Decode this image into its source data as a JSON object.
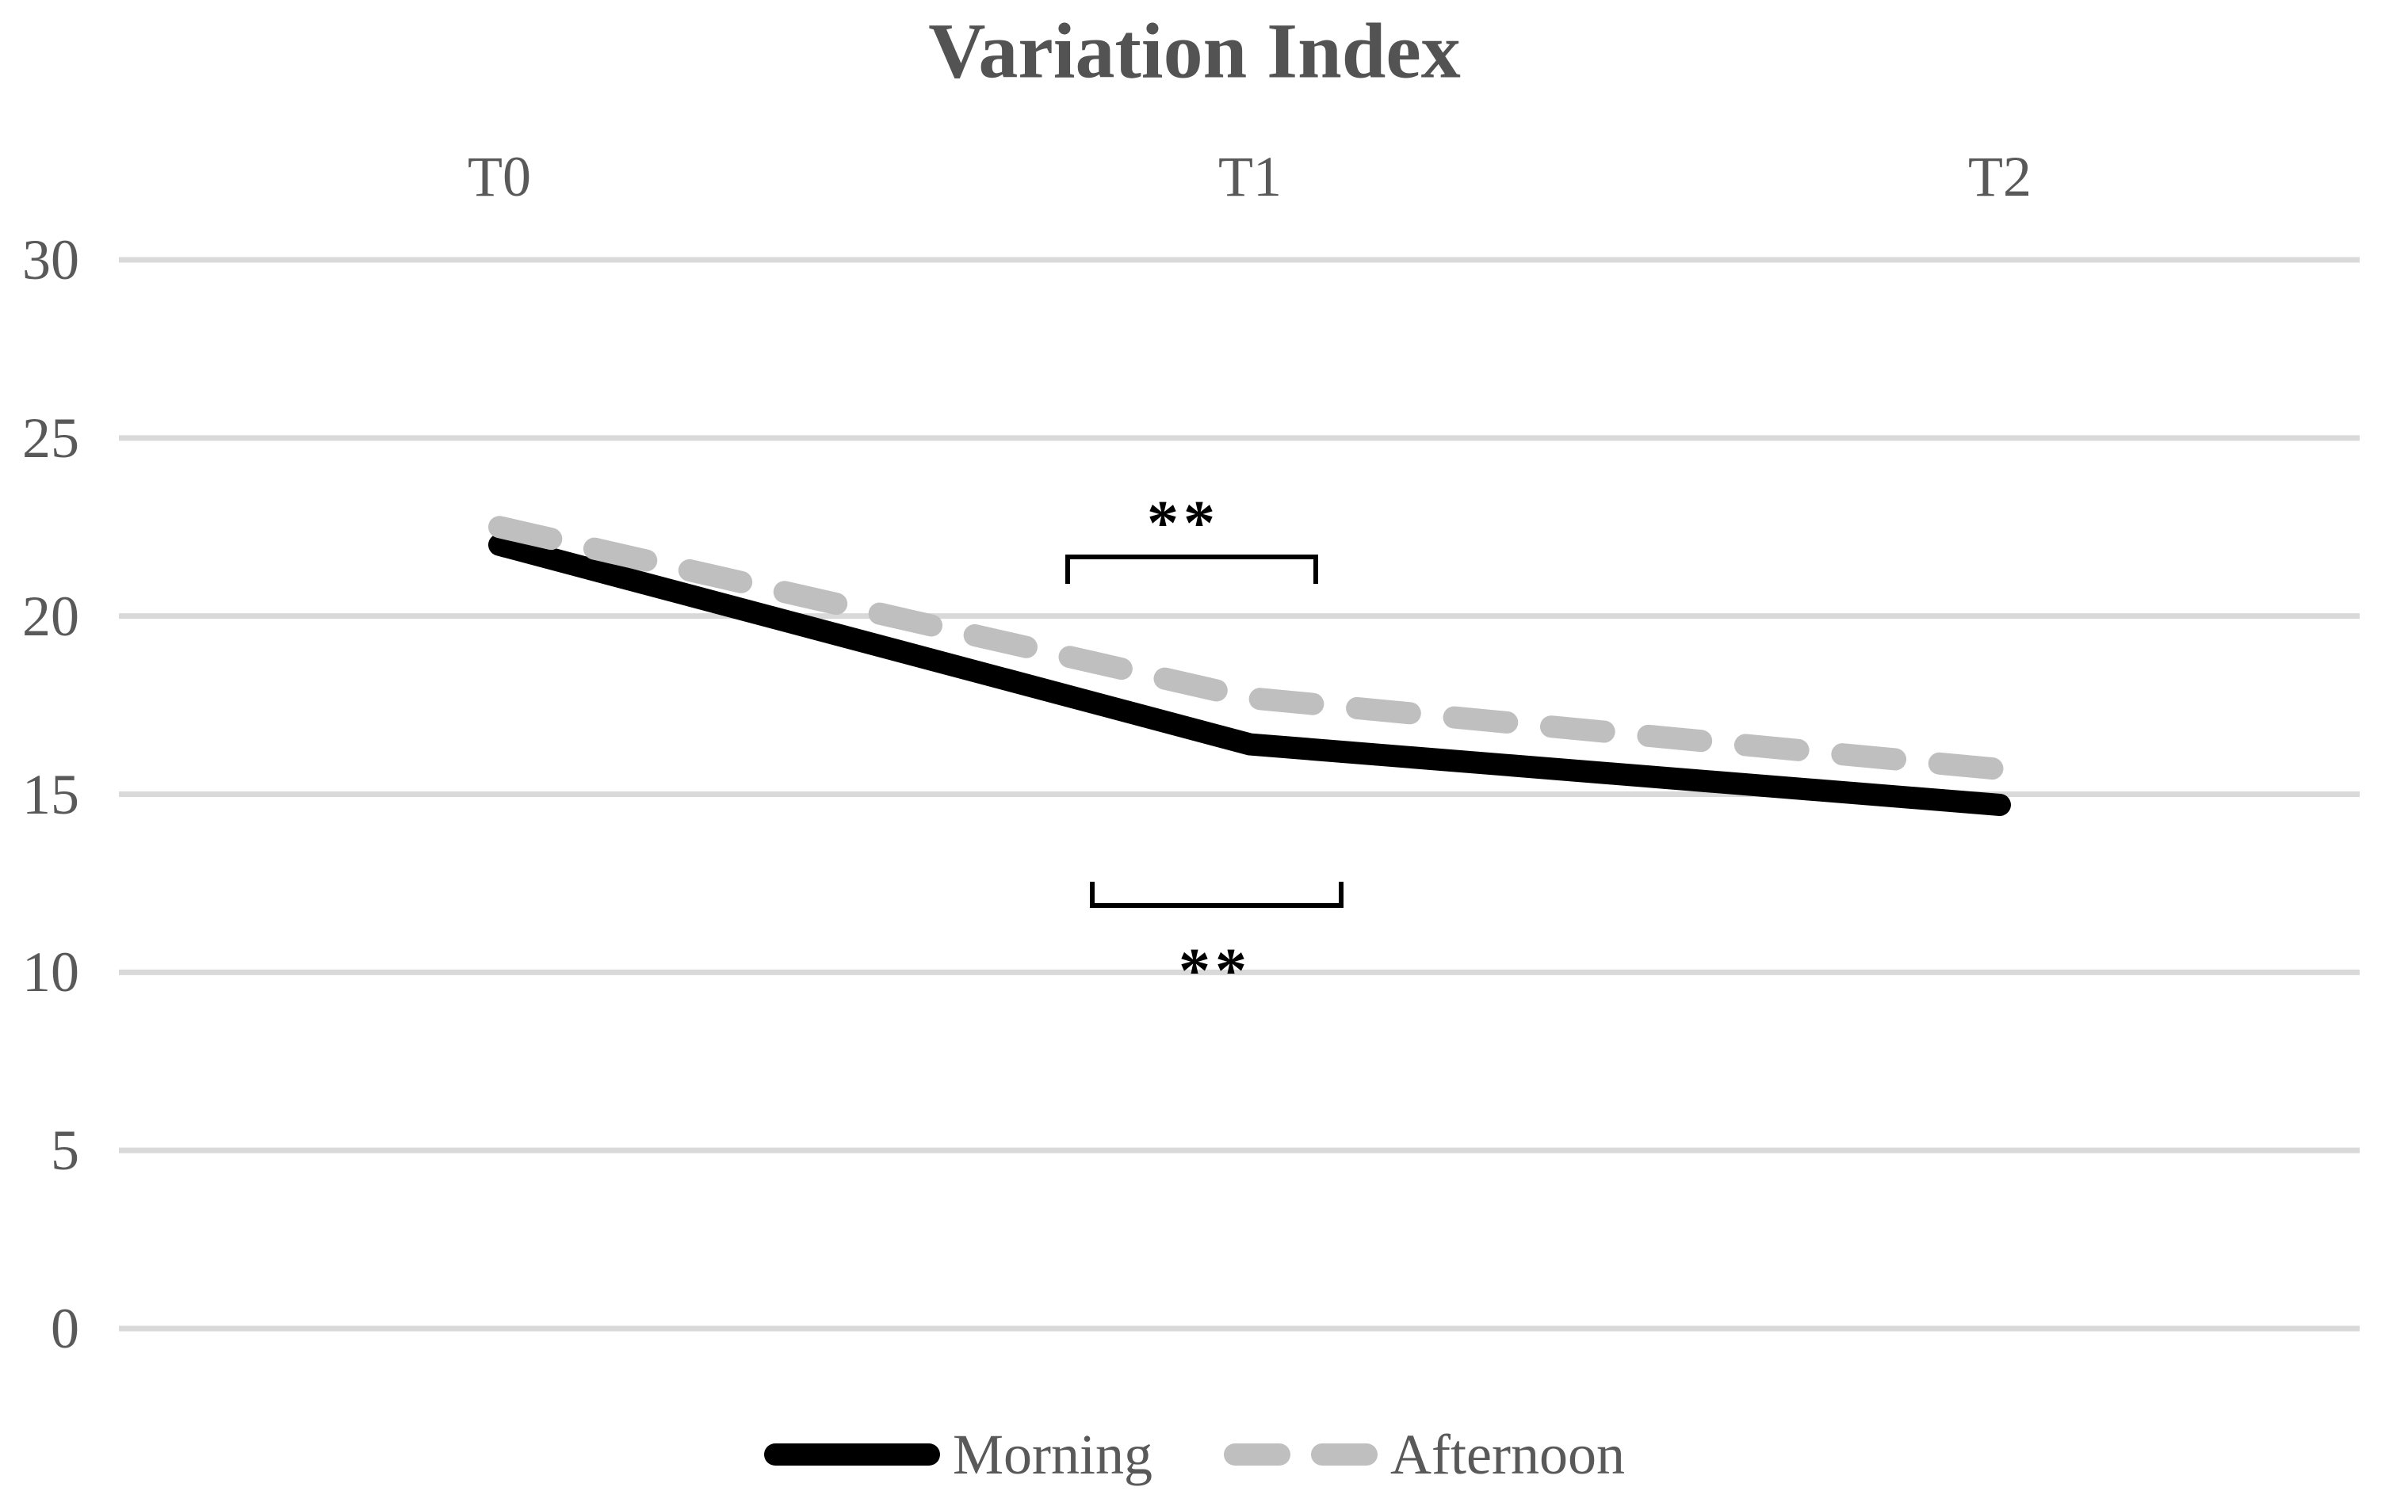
{
  "chart": {
    "title": "Variation Index"
  },
  "chart_data": {
    "type": "line",
    "categories": [
      "T0",
      "T1",
      "T2"
    ],
    "series": [
      {
        "name": "Morning",
        "values": [
          22.0,
          16.4,
          14.7
        ],
        "color": "#000000",
        "line_style": "solid"
      },
      {
        "name": "Afternoon",
        "values": [
          22.5,
          17.7,
          15.7
        ],
        "color": "#bfbfbf",
        "line_style": "dashed"
      }
    ],
    "ylim": [
      0,
      30
    ],
    "yticks": [
      30,
      25,
      20,
      15,
      10,
      5,
      0
    ],
    "grid": "horizontal",
    "legend_position": "bottom",
    "category_axis_position": "top",
    "annotations": [
      {
        "text": "**",
        "placement": "above-lines",
        "bracket": {
          "x1": 1347,
          "x2": 1660,
          "bar_y": 703,
          "leg": 34,
          "opens": "down"
        },
        "label": {
          "x": 1493,
          "y": 645
        }
      },
      {
        "text": "**",
        "placement": "below-lines",
        "bracket": {
          "x1": 1378,
          "x2": 1692,
          "bar_y": 1143,
          "leg": 30,
          "opens": "up"
        },
        "label": {
          "x": 1533,
          "y": 1210
        }
      }
    ]
  },
  "colors": {
    "grid": "#d9d9d9",
    "axis_text": "#595959",
    "title_text": "#535353",
    "annotation": "#000000"
  }
}
